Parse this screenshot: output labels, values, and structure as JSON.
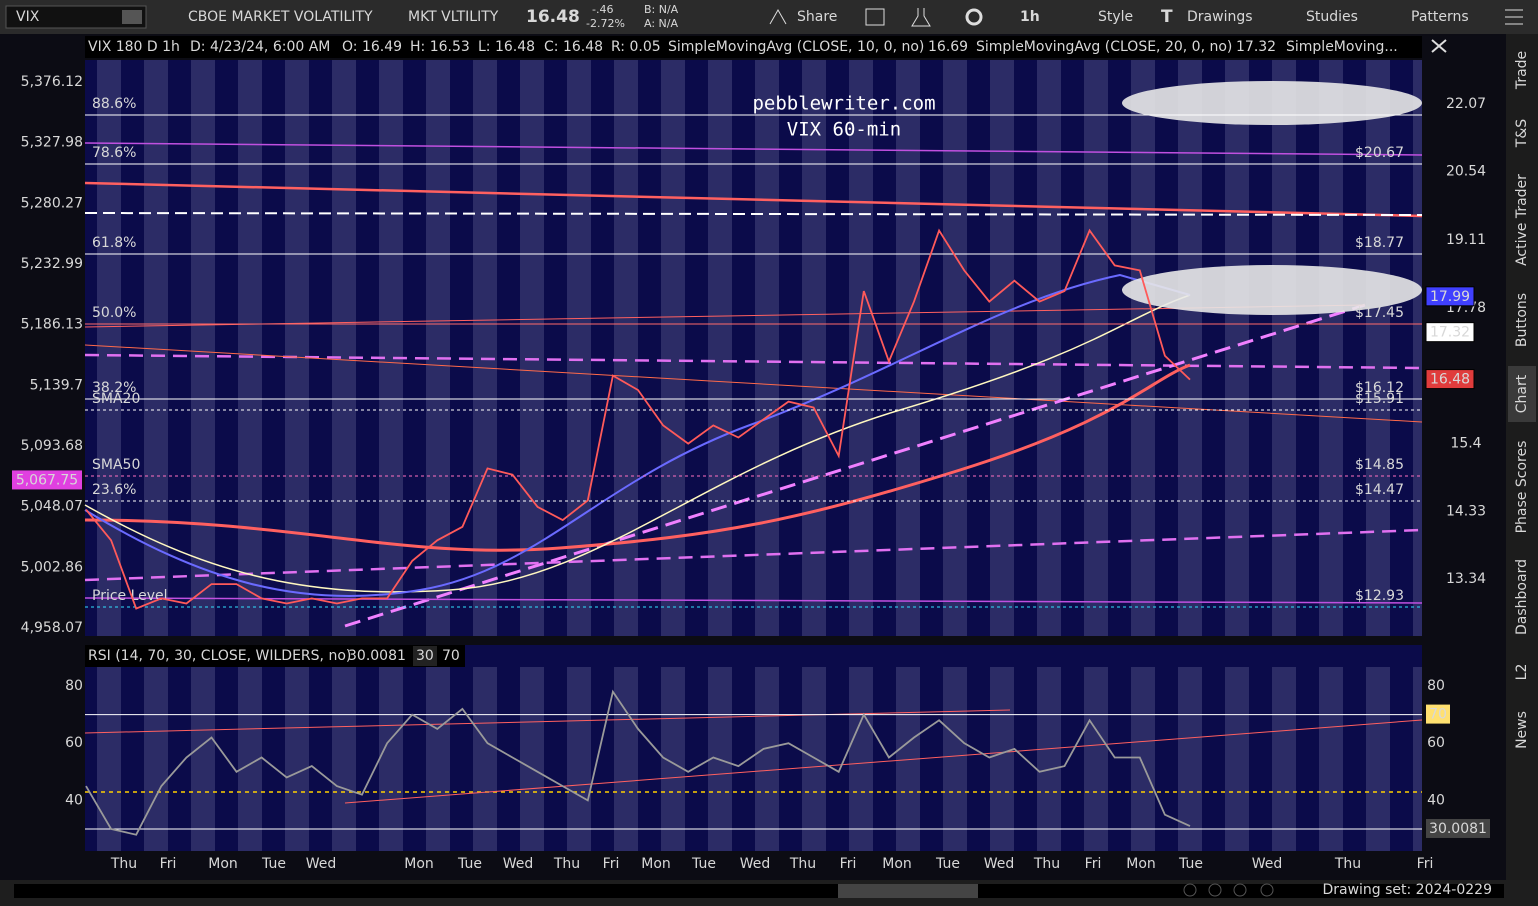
{
  "toolbar": {
    "symbol": "VIX",
    "description": "CBOE MARKET VOLATILITY",
    "short_name": "MKT VLTILITY",
    "last": "16.48",
    "change": "-.46",
    "change_pct": "-2.72%",
    "bid": "B: N/A",
    "ask": "A: N/A",
    "share": "Share",
    "timeframe": "1h",
    "style": "Style",
    "drawings": "Drawings",
    "studies": "Studies",
    "patterns": "Patterns"
  },
  "chart": {
    "header": {
      "symbol": "VIX 180 D 1h",
      "date": "D: 4/23/24, 6:00 AM",
      "open": "O: 16.49",
      "high": "H: 16.53",
      "low": "L: 16.48",
      "close": "C: 16.48",
      "range": "R: 0.05",
      "sma10": "SimpleMovingAvg (CLOSE, 10, 0, no)",
      "sma10_value": "16.69",
      "sma20": "SimpleMovingAvg (CLOSE, 20, 0, no)",
      "sma20_value": "17.32",
      "sma_more": "SimpleMoving..."
    },
    "watermark": [
      "pebblewriter.com",
      "VIX 60-min"
    ],
    "log_scale": true,
    "ylim": [
      12.56,
      23.12
    ],
    "yticks": [
      22.07,
      20.54,
      19.11,
      17.78,
      15.4,
      14.33,
      13.34
    ],
    "left_ylim": [
      4952.2,
      5393.7
    ],
    "left_yticks": [
      {
        "value": 5376.12,
        "label": "5,376.12"
      },
      {
        "value": 5327.98,
        "label": "5,327.98"
      },
      {
        "value": 5280.27,
        "label": "5,280.27"
      },
      {
        "value": 5232.99,
        "label": "5,232.99"
      },
      {
        "value": 5186.13,
        "label": "5,186.13"
      },
      {
        "value": 5139.7,
        "label": "5,139.7"
      },
      {
        "value": 5093.68,
        "label": "5,093.68"
      },
      {
        "value": 5048.07,
        "label": "5,048.07"
      },
      {
        "value": 5002.86,
        "label": "5,002.86"
      },
      {
        "value": 4958.07,
        "label": "4,958.07"
      }
    ],
    "left_marker": {
      "value": 5067.75,
      "label": "5,067.75"
    },
    "markers": [
      {
        "value": 17.99,
        "color": "#4040ff",
        "text_color": "#ffffff"
      },
      {
        "value": 17.32,
        "color": "#ffffff",
        "text_color": "#000000"
      },
      {
        "value": 16.48,
        "color": "#e03c3c",
        "text_color": "#ffffff"
      }
    ],
    "fib_levels": [
      {
        "label": "88.6%"
      },
      {
        "label": "78.6%",
        "price": "$20.67"
      },
      {
        "label": "61.8%",
        "price": "$18.77"
      },
      {
        "label": "50.0%",
        "price": "$17.45"
      },
      {
        "label": "38.2%",
        "price": "$16.12"
      },
      {
        "label": "SMA20",
        "price": "$15.91"
      },
      {
        "label": "SMA50",
        "price": "$14.85"
      },
      {
        "label": "23.6%",
        "price": "$14.47"
      },
      {
        "label": "Price Level",
        "price": "$12.93"
      }
    ],
    "series": [
      {
        "name": "VIX",
        "color": "#ff5a5a",
        "values": [
          14.36,
          13.9,
          12.93,
          13.07,
          13.0,
          13.27,
          13.27,
          13.07,
          13.0,
          13.07,
          13.0,
          13.07,
          13.07,
          13.6,
          13.9,
          14.1,
          15.0,
          14.9,
          14.4,
          14.2,
          14.5,
          16.55,
          16.3,
          15.7,
          15.4,
          15.7,
          15.5,
          15.8,
          16.1,
          16.0,
          15.2,
          18.1,
          16.8,
          17.9,
          19.3,
          18.5,
          17.9,
          18.3,
          17.9,
          18.1,
          19.3,
          18.6,
          18.5,
          16.9,
          16.48
        ]
      }
    ],
    "time_axis": [
      "Thu",
      "Fri",
      "Mon",
      "Tue",
      "Wed",
      "Mon",
      "Tue",
      "Wed",
      "Thu",
      "Fri",
      "Mon",
      "Tue",
      "Wed",
      "Thu",
      "Fri",
      "Mon",
      "Tue",
      "Wed",
      "Thu",
      "Fri",
      "Mon",
      "Tue",
      "Wed",
      "Thu",
      "Fri"
    ]
  },
  "rsi": {
    "header": "RSI (14, 70, 30, CLOSE, WILDERS, no)",
    "value": 30.0081,
    "lower": 30,
    "upper": 70,
    "ylim": [
      22.66,
      86.64
    ],
    "yticks": [
      80,
      60,
      40
    ],
    "color": "#9a9a9a",
    "values": [
      45,
      30,
      28,
      45,
      55,
      62,
      50,
      55,
      48,
      52,
      45,
      42,
      60,
      70,
      65,
      72,
      60,
      55,
      50,
      45,
      40,
      78,
      65,
      55,
      50,
      55,
      52,
      58,
      60,
      55,
      50,
      70,
      55,
      62,
      68,
      60,
      55,
      58,
      50,
      52,
      68,
      55,
      55,
      35,
      31
    ]
  },
  "sidebar": [
    "Trade",
    "T&S",
    "Active Trader",
    "Buttons",
    "Chart",
    "Phase Scores",
    "Dashboard",
    "L2",
    "News"
  ],
  "footer": {
    "drawing_set": "Drawing set: 2024-0229"
  }
}
